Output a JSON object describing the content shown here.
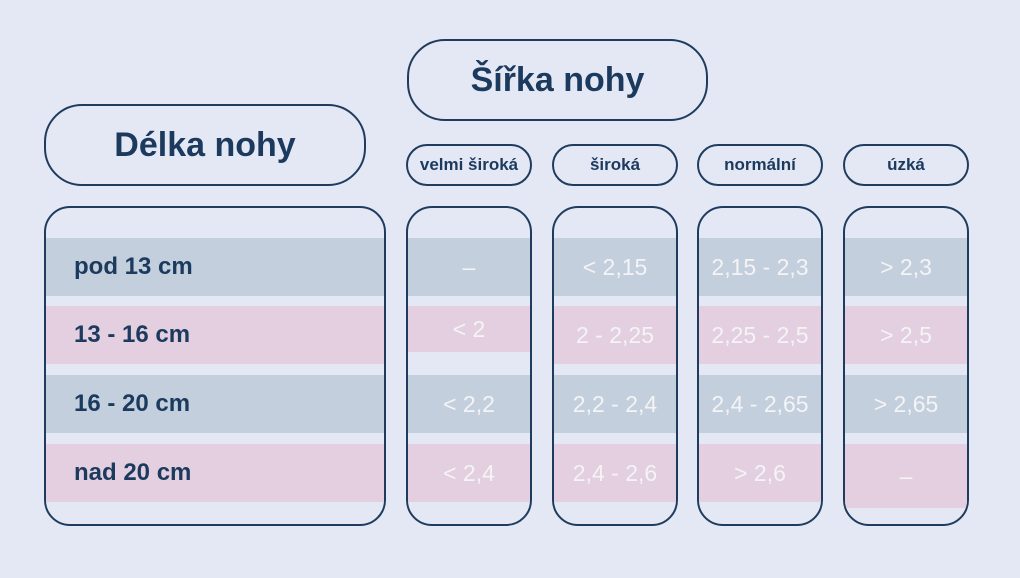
{
  "width_title": "Šířka nohy",
  "length_title": "Délka nohy",
  "columns": [
    "velmi široká",
    "široká",
    "normální",
    "úzká"
  ],
  "rows": [
    {
      "length": "pod 13 cm",
      "values": [
        "–",
        "< 2,15",
        "2,15 - 2,3",
        "> 2,3"
      ]
    },
    {
      "length": "13 - 16 cm",
      "values": [
        "< 2",
        "2 - 2,25",
        "2,25 - 2,5",
        "> 2,5"
      ]
    },
    {
      "length": "16 - 20 cm",
      "values": [
        "< 2,2",
        "2,2 - 2,4",
        "2,4 - 2,65",
        "> 2,65"
      ]
    },
    {
      "length": "nad 20 cm",
      "values": [
        "< 2,4",
        "2,4 - 2,6",
        "> 2,6",
        "–"
      ]
    }
  ],
  "colors": {
    "background": "#e4e8f4",
    "border": "#1f3c5f",
    "text": "#1b3a5e",
    "blue_band": "#c3cfdd",
    "pink_band": "#e3cfdf",
    "value_text": "#f4f4f7"
  }
}
